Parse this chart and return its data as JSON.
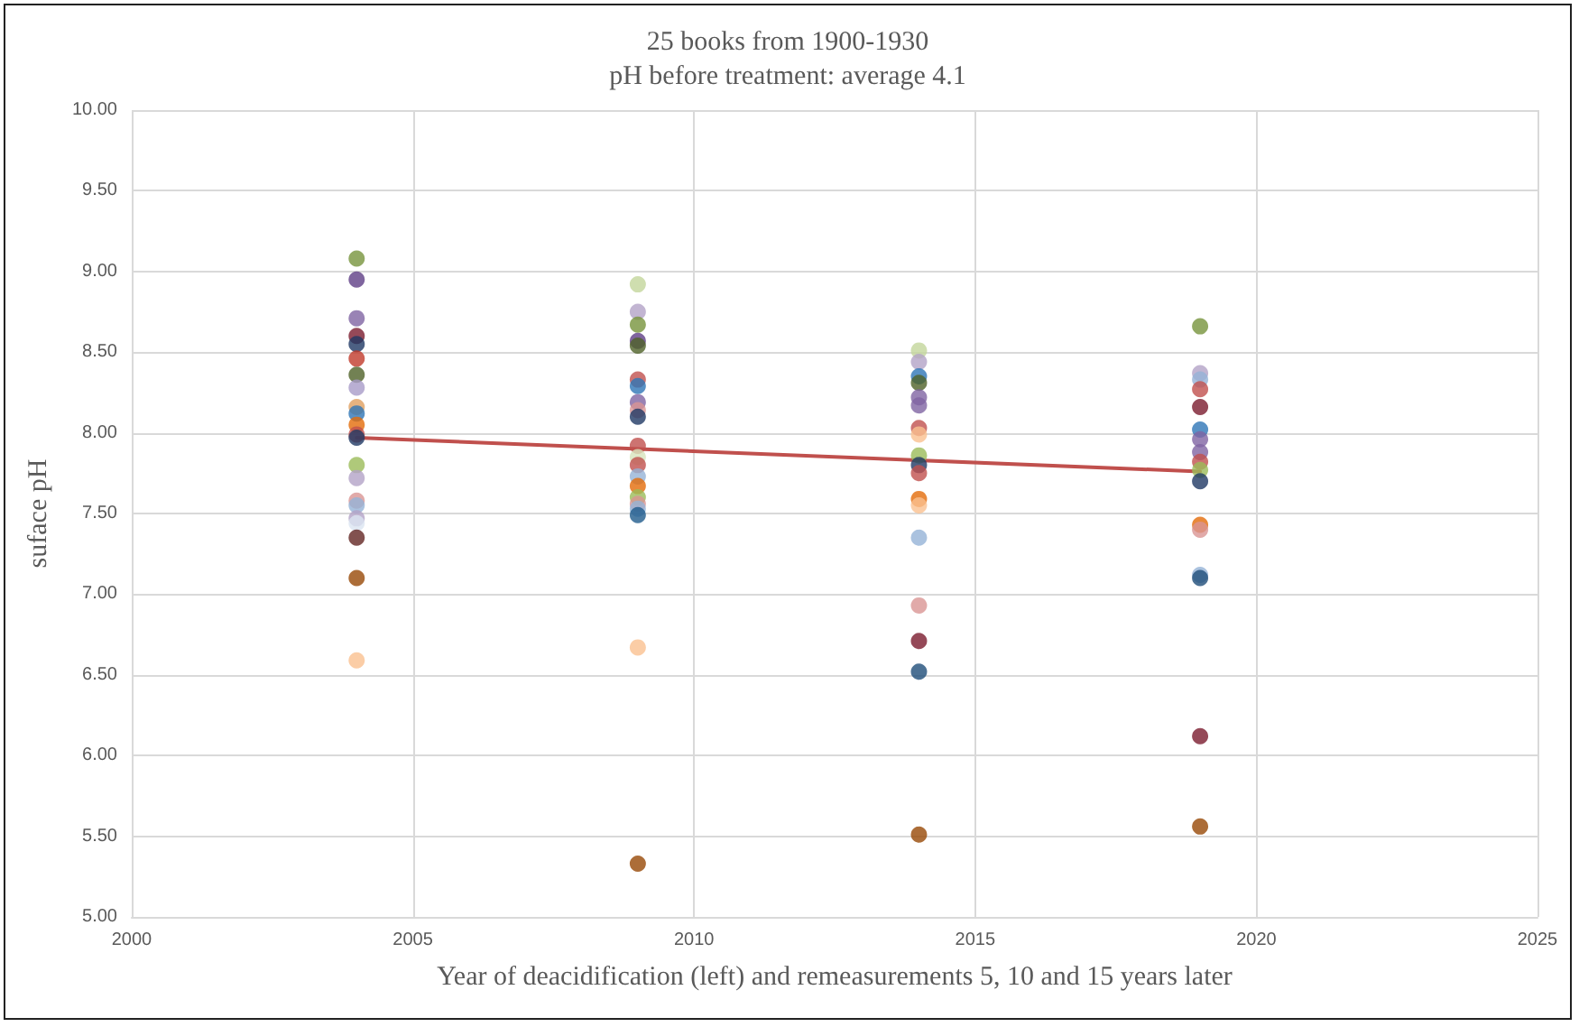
{
  "chart_data": {
    "type": "scatter",
    "title": "25 books from 1900-1930",
    "subtitle": "pH before treatment: average 4.1",
    "xlabel": "Year of deacidification (left) and remeasurements 5, 10 and 15 years later",
    "ylabel": "suface pH",
    "xlim": [
      2000,
      2025
    ],
    "xticks": [
      2000,
      2005,
      2010,
      2015,
      2020,
      2025
    ],
    "ylim": [
      5,
      10
    ],
    "yticks": [
      {
        "value": 5,
        "label": "5.00"
      },
      {
        "value": 5.5,
        "label": "5.50"
      },
      {
        "value": 6,
        "label": "6.00"
      },
      {
        "value": 6.5,
        "label": "6.50"
      },
      {
        "value": 7,
        "label": "7.00"
      },
      {
        "value": 7.5,
        "label": "7.50"
      },
      {
        "value": 8,
        "label": "8.00"
      },
      {
        "value": 8.5,
        "label": "8.50"
      },
      {
        "value": 9,
        "label": "9.00"
      },
      {
        "value": 9.5,
        "label": "9.50"
      },
      {
        "value": 10,
        "label": "10.00"
      }
    ],
    "grid": true,
    "series": [
      {
        "marker": "circle",
        "x": [
          2004,
          2004,
          2004,
          2004,
          2004,
          2004,
          2004,
          2004,
          2004,
          2004,
          2004,
          2004,
          2004,
          2004,
          2004,
          2004,
          2004,
          2004,
          2004,
          2004,
          2004,
          2004,
          2009,
          2009,
          2009,
          2009,
          2009,
          2009,
          2009,
          2009,
          2009,
          2009,
          2009,
          2009,
          2009,
          2009,
          2009,
          2009,
          2009,
          2009,
          2009,
          2009,
          2009,
          2014,
          2014,
          2014,
          2014,
          2014,
          2014,
          2014,
          2014,
          2014,
          2014,
          2014,
          2014,
          2014,
          2014,
          2014,
          2014,
          2014,
          2014,
          2019,
          2019,
          2019,
          2019,
          2019,
          2019,
          2019,
          2019,
          2019,
          2019,
          2019,
          2019,
          2019,
          2019,
          2019,
          2019,
          2019
        ],
        "values": [
          9.08,
          8.95,
          8.71,
          8.6,
          8.55,
          8.46,
          8.36,
          8.28,
          8.16,
          8.12,
          8.05,
          7.99,
          7.97,
          7.8,
          7.72,
          7.58,
          7.55,
          7.47,
          7.44,
          7.35,
          7.1,
          6.59,
          8.92,
          8.75,
          8.67,
          8.57,
          8.54,
          8.33,
          8.29,
          8.19,
          8.14,
          8.1,
          7.92,
          7.85,
          7.8,
          7.73,
          7.67,
          7.6,
          7.56,
          7.53,
          7.49,
          6.67,
          5.33,
          8.51,
          8.44,
          8.35,
          8.31,
          8.22,
          8.17,
          8.03,
          7.99,
          7.86,
          7.8,
          7.75,
          7.59,
          7.55,
          7.35,
          6.93,
          6.71,
          6.52,
          5.51,
          8.66,
          8.37,
          8.33,
          8.27,
          8.16,
          8.02,
          7.96,
          7.88,
          7.82,
          7.77,
          7.7,
          7.43,
          7.4,
          7.12,
          7.1,
          6.12,
          5.56
        ],
        "colors": [
          "#77933c",
          "#5f3f86",
          "#8064a2",
          "#7b1c2e",
          "#1f3864",
          "#c0392b",
          "#4f6228",
          "#a79bc8",
          "#e0a060",
          "#2e75b6",
          "#e36c09",
          "#c0504d",
          "#1f3864",
          "#9bbb59",
          "#b3a2c7",
          "#d99594",
          "#95b3d7",
          "#b3a2c7",
          "#dbe5f1",
          "#632523",
          "#974806",
          "#fac090",
          "#c3d69b",
          "#b3a2c7",
          "#77933c",
          "#5f3f86",
          "#4f6228",
          "#c0504d",
          "#2e75b6",
          "#8064a2",
          "#d99594",
          "#1f3864",
          "#c0504d",
          "#d7e4bd",
          "#c0504d",
          "#95b3d7",
          "#e36c09",
          "#9bbb59",
          "#d99594",
          "#95b3d7",
          "#1f5b8c",
          "#fac090",
          "#974806",
          "#c3d69b",
          "#b3a2c7",
          "#2e75b6",
          "#4f6228",
          "#8064a2",
          "#8064a2",
          "#c0504d",
          "#fac090",
          "#9bbb59",
          "#1f3864",
          "#c0504d",
          "#e36c09",
          "#fac090",
          "#95b3d7",
          "#d99594",
          "#7b1c2e",
          "#1f4e79",
          "#974806",
          "#77933c",
          "#b3a2c7",
          "#95b3d7",
          "#c0504d",
          "#7b1c2e",
          "#2e75b6",
          "#8064a2",
          "#8064a2",
          "#c0504d",
          "#9bbb59",
          "#1f3864",
          "#e36c09",
          "#d99594",
          "#95b3d7",
          "#1f4e79",
          "#7b1c2e",
          "#974806"
        ]
      },
      {
        "type": "line",
        "marker": "none",
        "x": [
          2004,
          2019
        ],
        "values": [
          7.97,
          7.76
        ],
        "color": "#c0504d"
      }
    ]
  }
}
